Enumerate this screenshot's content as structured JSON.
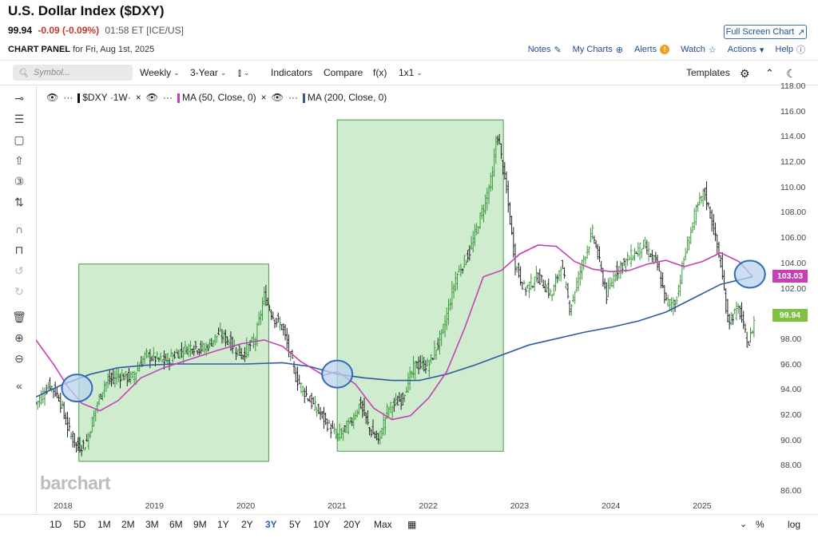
{
  "header": {
    "title": "U.S. Dollar Index ($DXY)",
    "last": "99.94",
    "change": "-0.09 (-0.09%)",
    "time": "01:58 ET [ICE/US]",
    "panel_label": "CHART PANEL",
    "panel_date": "for Fri, Aug 1st, 2025",
    "fullscreen_label": "Full Screen Chart"
  },
  "top_links": {
    "notes": "Notes",
    "my_charts": "My Charts",
    "alerts": "Alerts",
    "alerts_badge": "!",
    "watch": "Watch",
    "actions": "Actions",
    "help": "Help"
  },
  "toolbar": {
    "search_placeholder": "Symbol...",
    "period": "Weekly",
    "range": "3-Year",
    "indicators": "Indicators",
    "compare": "Compare",
    "fx": "f(x)",
    "layout": "1x1",
    "templates": "Templates"
  },
  "legend": {
    "symbol": "$DXY ·1W·",
    "ma50": "MA (50, Close, 0)",
    "ma200": "MA (200, Close, 0)",
    "dots": "···"
  },
  "colors": {
    "ma50": "#c640b5",
    "ma200": "#2e5b9e",
    "box_fill": "#bfe5bf",
    "box_stroke": "#4a9a4a",
    "circle_fill": "#b9d3ee",
    "circle_stroke": "#3168b8",
    "price_tag": "#7fc142",
    "ma50_tag": "#c640b5"
  },
  "chart_data": {
    "type": "ohlc-weekly-with-moving-averages",
    "y_ticks": [
      "118.00",
      "116.00",
      "114.00",
      "112.00",
      "110.00",
      "108.00",
      "106.00",
      "104.00",
      "102.00",
      "100.00",
      "98.00",
      "96.00",
      "94.00",
      "92.00",
      "90.00",
      "88.00",
      "86.00"
    ],
    "y_range": [
      86,
      118
    ],
    "x_ticks": [
      "2018",
      "2019",
      "2020",
      "2021",
      "2022",
      "2023",
      "2024",
      "2025"
    ],
    "x_range_years": [
      2017.7,
      2025.75
    ],
    "last_price": "99.94",
    "ma50_value": "103.03",
    "series": [
      {
        "name": "$DXY",
        "points": [
          [
            2017.7,
            93.0
          ],
          [
            2017.85,
            94.5
          ],
          [
            2017.95,
            93.5
          ],
          [
            2018.05,
            91.0
          ],
          [
            2018.15,
            89.5
          ],
          [
            2018.25,
            89.8
          ],
          [
            2018.35,
            92.5
          ],
          [
            2018.45,
            94.5
          ],
          [
            2018.6,
            95.2
          ],
          [
            2018.75,
            95.0
          ],
          [
            2018.9,
            96.8
          ],
          [
            2019.1,
            96.3
          ],
          [
            2019.25,
            97.0
          ],
          [
            2019.4,
            97.5
          ],
          [
            2019.55,
            97.3
          ],
          [
            2019.7,
            98.5
          ],
          [
            2019.8,
            98.0
          ],
          [
            2019.95,
            96.8
          ],
          [
            2020.1,
            98.0
          ],
          [
            2020.2,
            101.5
          ],
          [
            2020.3,
            99.8
          ],
          [
            2020.4,
            99.0
          ],
          [
            2020.55,
            95.0
          ],
          [
            2020.7,
            93.2
          ],
          [
            2020.85,
            91.8
          ],
          [
            2021.0,
            90.3
          ],
          [
            2021.15,
            91.5
          ],
          [
            2021.25,
            93.0
          ],
          [
            2021.35,
            91.0
          ],
          [
            2021.45,
            90.0
          ],
          [
            2021.55,
            92.5
          ],
          [
            2021.7,
            93.3
          ],
          [
            2021.85,
            96.0
          ],
          [
            2022.0,
            96.0
          ],
          [
            2022.15,
            98.5
          ],
          [
            2022.3,
            103.0
          ],
          [
            2022.45,
            105.0
          ],
          [
            2022.6,
            108.5
          ],
          [
            2022.7,
            111.0
          ],
          [
            2022.75,
            114.5
          ],
          [
            2022.85,
            110.0
          ],
          [
            2022.95,
            104.0
          ],
          [
            2023.05,
            102.0
          ],
          [
            2023.2,
            103.0
          ],
          [
            2023.35,
            101.5
          ],
          [
            2023.45,
            104.0
          ],
          [
            2023.55,
            100.5
          ],
          [
            2023.7,
            104.5
          ],
          [
            2023.8,
            106.5
          ],
          [
            2023.95,
            101.5
          ],
          [
            2024.05,
            103.5
          ],
          [
            2024.2,
            104.5
          ],
          [
            2024.35,
            105.5
          ],
          [
            2024.5,
            104.0
          ],
          [
            2024.6,
            101.0
          ],
          [
            2024.7,
            100.8
          ],
          [
            2024.8,
            104.5
          ],
          [
            2024.92,
            108.0
          ],
          [
            2025.02,
            109.8
          ],
          [
            2025.1,
            107.5
          ],
          [
            2025.2,
            104.0
          ],
          [
            2025.28,
            99.5
          ],
          [
            2025.4,
            100.5
          ],
          [
            2025.5,
            97.5
          ],
          [
            2025.58,
            99.94
          ]
        ]
      },
      {
        "name": "MA (50, Close, 0)",
        "points": [
          [
            2017.7,
            98.0
          ],
          [
            2017.9,
            96.0
          ],
          [
            2018.05,
            94.3
          ],
          [
            2018.2,
            93.0
          ],
          [
            2018.4,
            92.4
          ],
          [
            2018.6,
            93.2
          ],
          [
            2018.85,
            95.0
          ],
          [
            2019.1,
            95.8
          ],
          [
            2019.4,
            96.5
          ],
          [
            2019.7,
            97.2
          ],
          [
            2019.95,
            97.7
          ],
          [
            2020.2,
            98.0
          ],
          [
            2020.4,
            97.5
          ],
          [
            2020.6,
            96.3
          ],
          [
            2020.85,
            95.2
          ],
          [
            2021.0,
            95.5
          ],
          [
            2021.2,
            94.5
          ],
          [
            2021.4,
            92.6
          ],
          [
            2021.6,
            91.7
          ],
          [
            2021.8,
            92.0
          ],
          [
            2022.0,
            93.4
          ],
          [
            2022.2,
            95.5
          ],
          [
            2022.4,
            99.0
          ],
          [
            2022.6,
            103.0
          ],
          [
            2022.8,
            103.5
          ],
          [
            2023.0,
            104.8
          ],
          [
            2023.2,
            105.5
          ],
          [
            2023.4,
            105.4
          ],
          [
            2023.6,
            104.2
          ],
          [
            2023.8,
            103.6
          ],
          [
            2024.0,
            103.4
          ],
          [
            2024.2,
            103.5
          ],
          [
            2024.4,
            104.0
          ],
          [
            2024.6,
            104.3
          ],
          [
            2024.8,
            103.8
          ],
          [
            2025.0,
            104.2
          ],
          [
            2025.2,
            104.9
          ],
          [
            2025.4,
            104.2
          ],
          [
            2025.55,
            103.03
          ]
        ]
      },
      {
        "name": "MA (200, Close, 0)",
        "points": [
          [
            2017.7,
            93.5
          ],
          [
            2018.0,
            94.5
          ],
          [
            2018.3,
            95.3
          ],
          [
            2018.6,
            95.8
          ],
          [
            2018.9,
            96.0
          ],
          [
            2019.2,
            96.1
          ],
          [
            2019.6,
            96.1
          ],
          [
            2020.0,
            96.1
          ],
          [
            2020.4,
            96.2
          ],
          [
            2020.7,
            95.9
          ],
          [
            2021.0,
            95.3
          ],
          [
            2021.3,
            95.0
          ],
          [
            2021.6,
            94.8
          ],
          [
            2021.9,
            94.8
          ],
          [
            2022.2,
            95.3
          ],
          [
            2022.5,
            96.0
          ],
          [
            2022.8,
            96.8
          ],
          [
            2023.1,
            97.6
          ],
          [
            2023.4,
            98.1
          ],
          [
            2023.7,
            98.6
          ],
          [
            2024.0,
            99.0
          ],
          [
            2024.3,
            99.5
          ],
          [
            2024.6,
            100.2
          ],
          [
            2024.9,
            101.3
          ],
          [
            2025.2,
            102.4
          ],
          [
            2025.55,
            103.0
          ]
        ]
      }
    ],
    "highlight_boxes": [
      {
        "x0": 2018.17,
        "x1": 2020.25,
        "y0": 88.4,
        "y1": 104.0
      },
      {
        "x0": 2021.0,
        "x1": 2022.82,
        "y0": 89.2,
        "y1": 115.4
      }
    ],
    "crossover_circles": [
      {
        "x": 2018.15,
        "y": 94.2
      },
      {
        "x": 2021.0,
        "y": 95.3
      },
      {
        "x": 2025.52,
        "y": 103.2
      }
    ]
  },
  "watermark": "barchart",
  "bottom": {
    "ranges": [
      "1D",
      "5D",
      "1M",
      "2M",
      "3M",
      "6M",
      "9M",
      "1Y",
      "2Y",
      "3Y",
      "5Y",
      "10Y",
      "20Y",
      "Max"
    ],
    "active": "3Y",
    "percent": "%",
    "log": "log"
  }
}
